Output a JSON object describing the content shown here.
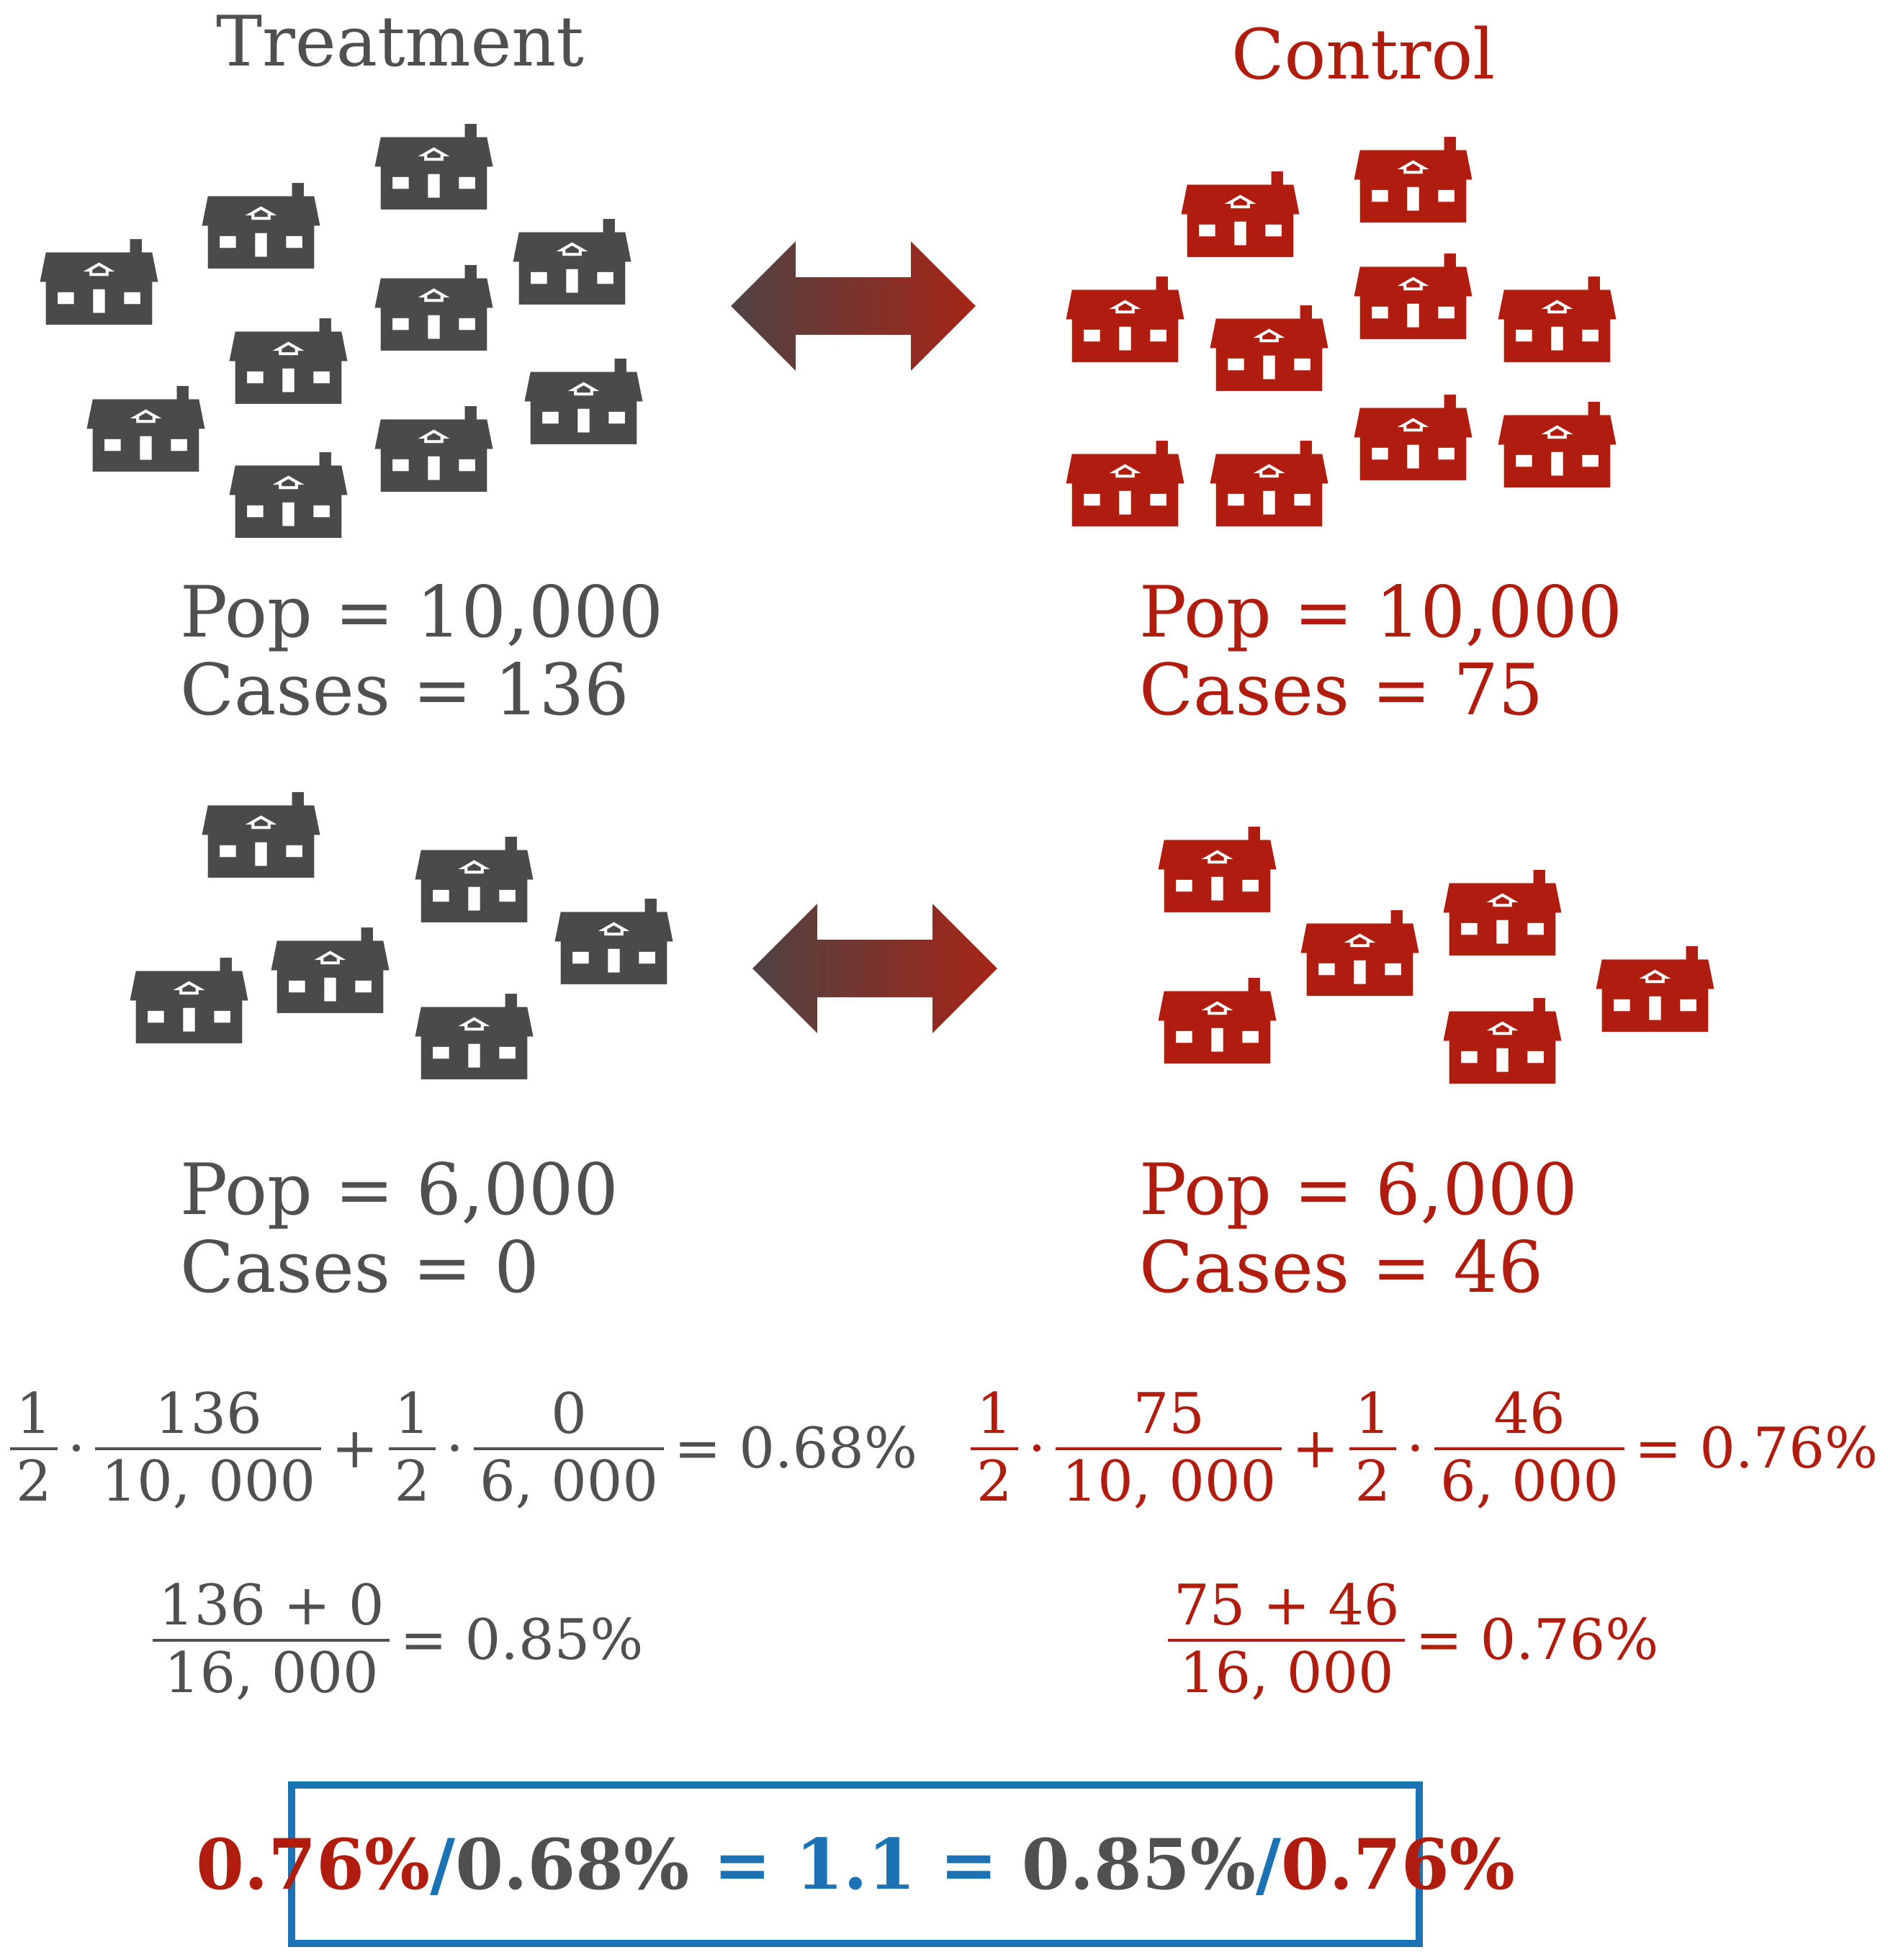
{
  "colors": {
    "treatment": "#505050",
    "control": "#b01c0e",
    "accent": "#1b72b5"
  },
  "icons": {
    "house": "house-icon",
    "arrow": "double-arrow-icon"
  },
  "headers": {
    "treatment": "Treatment",
    "control": "Control"
  },
  "groups": {
    "top": {
      "treatment": {
        "pop": "Pop = 10,000",
        "cases": "Cases = 136",
        "houses": 10
      },
      "control": {
        "pop": "Pop = 10,000",
        "cases": "Cases = 75",
        "houses": 10
      }
    },
    "bottom": {
      "treatment": {
        "pop": "Pop = 6,000",
        "cases": "Cases = 0",
        "houses": 6
      },
      "control": {
        "pop": "Pop = 6,000",
        "cases": "Cases = 46",
        "houses": 6
      }
    }
  },
  "equations": {
    "treatment_weighted": {
      "w1n": "1",
      "w1d": "2",
      "f1n": "136",
      "f1d": "10, 000",
      "w2n": "1",
      "w2d": "2",
      "f2n": "0",
      "f2d": "6, 000",
      "result": "= 0.68%"
    },
    "control_weighted": {
      "w1n": "1",
      "w1d": "2",
      "f1n": "75",
      "f1d": "10, 000",
      "w2n": "1",
      "w2d": "2",
      "f2n": "46",
      "f2d": "6, 000",
      "result": "= 0.76%"
    },
    "treatment_pooled": {
      "num": "136 + 0",
      "den": "16, 000",
      "result": "= 0.85%"
    },
    "control_pooled": {
      "num": "75 + 46",
      "den": "16, 000",
      "result": "= 0.76%"
    }
  },
  "summary": {
    "p1": "0.76%",
    "s1": "/",
    "p2": "0.68%",
    "eq1": " = ",
    "ratio": "1.1",
    "eq2": " = ",
    "p3": "0.85%",
    "s2": "/",
    "p4": "0.76%"
  }
}
